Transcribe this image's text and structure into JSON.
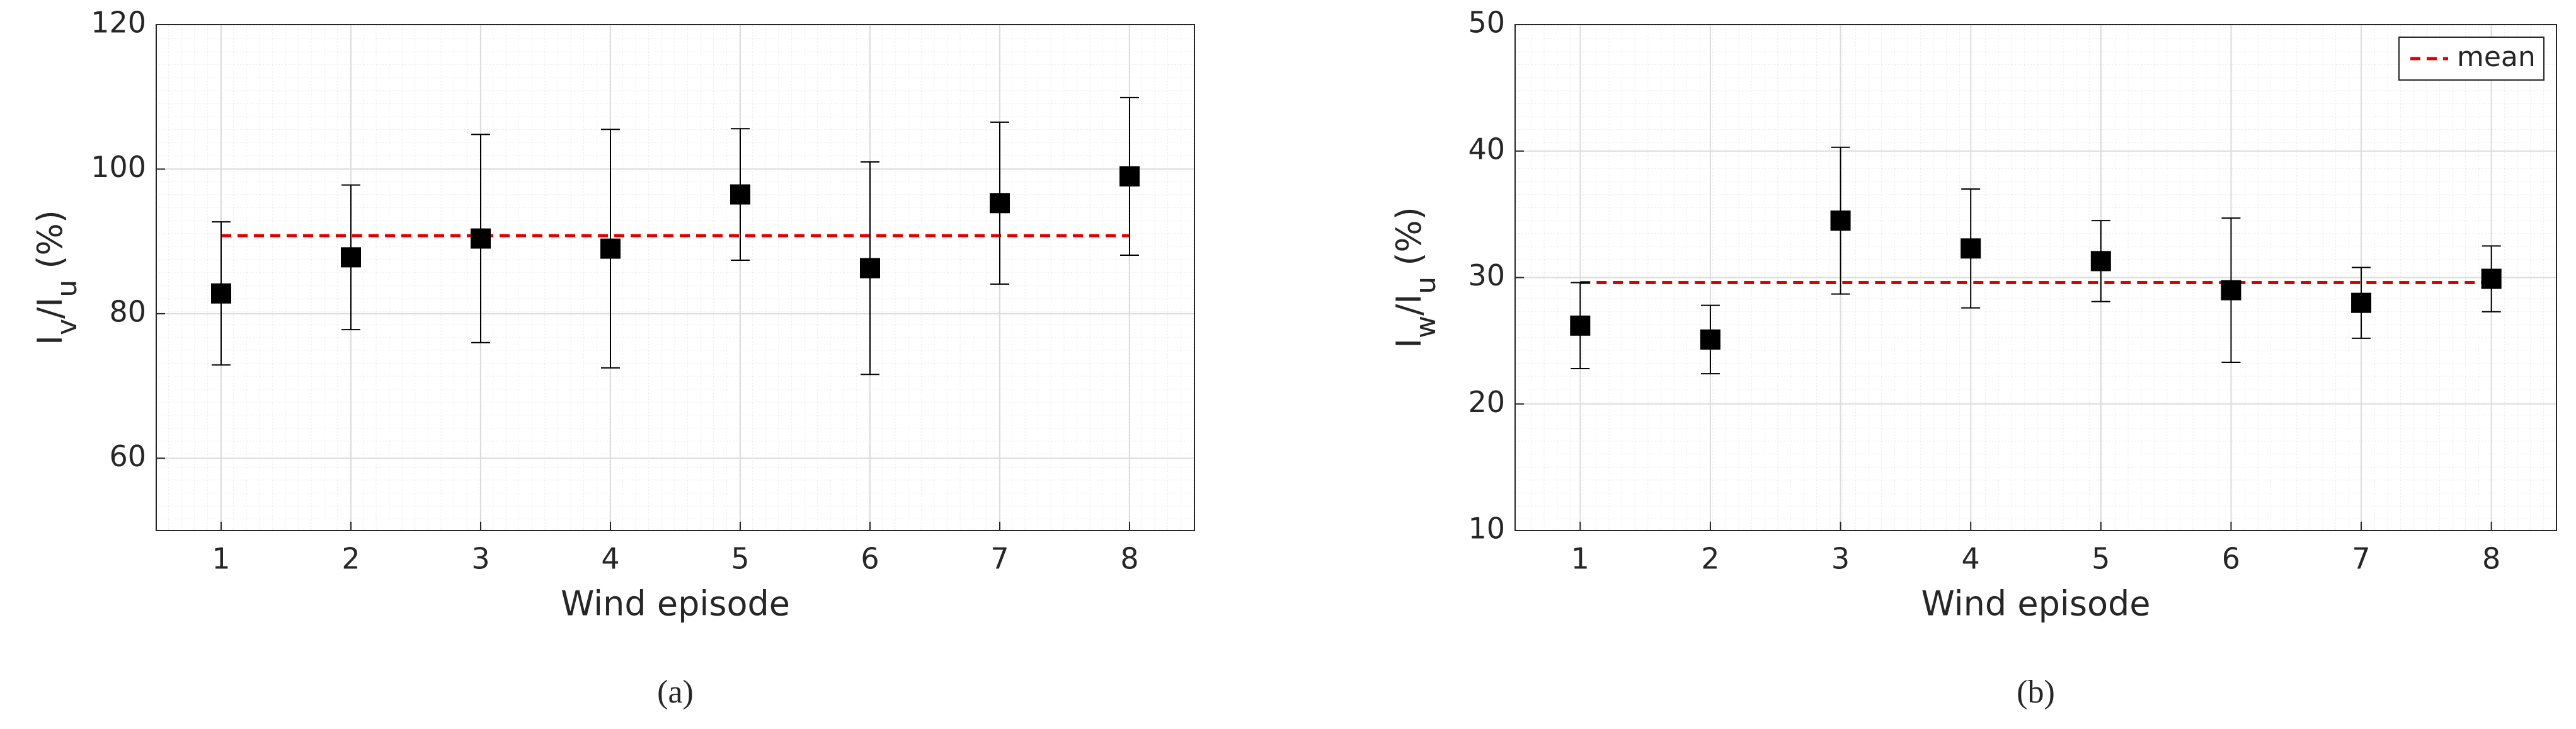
{
  "chart_data": [
    {
      "type": "errorbar",
      "caption": "(a)",
      "xlabel": "Wind episode",
      "ylabel": [
        {
          "text": "I"
        },
        {
          "text": "v",
          "sub": true
        },
        {
          "text": "/I"
        },
        {
          "text": "u",
          "sub": true
        },
        {
          "text": " (%)"
        }
      ],
      "x": [
        1,
        2,
        3,
        4,
        5,
        6,
        7,
        8
      ],
      "values": [
        82.8,
        87.8,
        90.4,
        89.0,
        96.5,
        86.3,
        95.3,
        99.0
      ],
      "errors": [
        9.9,
        10.0,
        14.4,
        16.5,
        9.1,
        14.7,
        11.2,
        10.9
      ],
      "color": "#000000",
      "mean": {
        "value": 90.8,
        "color": "#e00000"
      },
      "xlim": [
        0.5,
        8.5
      ],
      "xticks": [
        1,
        2,
        3,
        4,
        5,
        6,
        7,
        8
      ],
      "ylim": [
        50,
        120
      ],
      "yticks": [
        60,
        80,
        100,
        120
      ],
      "grid": true
    },
    {
      "type": "errorbar",
      "caption": "(b)",
      "xlabel": "Wind episode",
      "ylabel": [
        {
          "text": "I"
        },
        {
          "text": "w",
          "sub": true
        },
        {
          "text": "/I"
        },
        {
          "text": "u",
          "sub": true
        },
        {
          "text": " (%)"
        }
      ],
      "x": [
        1,
        2,
        3,
        4,
        5,
        6,
        7,
        8
      ],
      "values": [
        26.2,
        25.1,
        34.5,
        32.3,
        31.3,
        29.0,
        28.0,
        29.9
      ],
      "errors": [
        3.4,
        2.7,
        5.8,
        4.7,
        3.2,
        5.7,
        2.8,
        2.6
      ],
      "color": "#000000",
      "mean": {
        "name": "mean",
        "value": 29.6,
        "color": "#e00000"
      },
      "legend": "upper right",
      "xlim": [
        0.5,
        8.5
      ],
      "xticks": [
        1,
        2,
        3,
        4,
        5,
        6,
        7,
        8
      ],
      "ylim": [
        10,
        50
      ],
      "yticks": [
        10,
        20,
        30,
        40,
        50
      ],
      "grid": true
    }
  ]
}
